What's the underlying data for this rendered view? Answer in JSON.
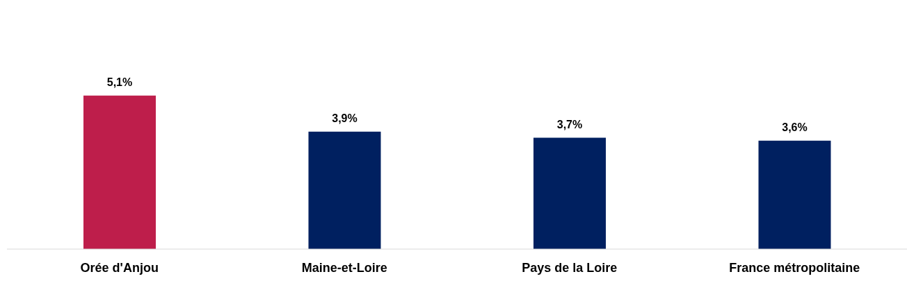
{
  "chart_data": {
    "type": "bar",
    "categories": [
      "Orée d'Anjou",
      "Maine-et-Loire",
      "Pays de la Loire",
      "France métropolitaine"
    ],
    "values": [
      5.1,
      3.9,
      3.7,
      3.6
    ],
    "colors": [
      "#be1e4b",
      "#002060",
      "#002060",
      "#002060"
    ],
    "value_labels": [
      "5,1%",
      "3,9%",
      "3,7%",
      "3,6%"
    ],
    "tick_labels": "x",
    "legend": false
  }
}
